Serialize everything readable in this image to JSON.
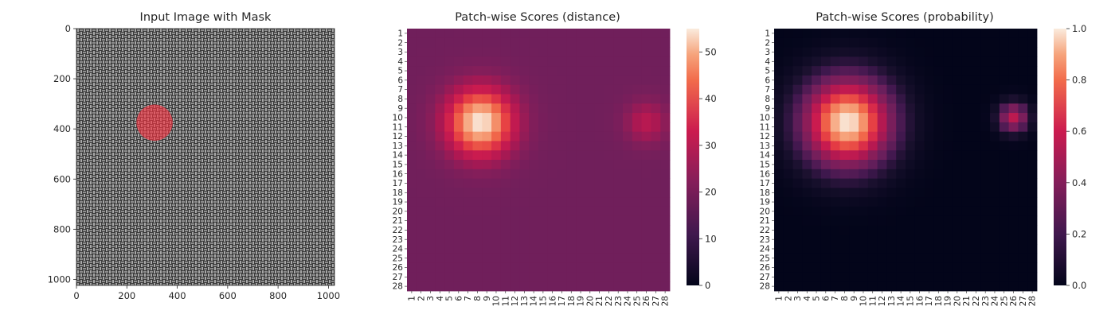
{
  "chart_data": [
    {
      "type": "image",
      "title": "Input Image with Mask",
      "xticks": [
        0,
        200,
        400,
        600,
        800,
        1000
      ],
      "yticks": [
        0,
        200,
        400,
        600,
        800,
        1000
      ],
      "xlim": [
        0,
        1024
      ],
      "ylim": [
        1024,
        0
      ],
      "mask": {
        "cx": 310,
        "cy": 375,
        "r": 72,
        "color": "#ff3040"
      }
    },
    {
      "type": "heatmap",
      "title": "Patch-wise Scores (distance)",
      "size": 28,
      "xticklabels": [
        "1",
        "2",
        "3",
        "4",
        "5",
        "6",
        "7",
        "8",
        "9",
        "10",
        "11",
        "12",
        "13",
        "14",
        "15",
        "16",
        "17",
        "18",
        "19",
        "20",
        "21",
        "22",
        "23",
        "24",
        "25",
        "26",
        "27",
        "28"
      ],
      "yticklabels": [
        "1",
        "2",
        "3",
        "4",
        "5",
        "6",
        "7",
        "8",
        "9",
        "10",
        "11",
        "12",
        "13",
        "14",
        "15",
        "16",
        "17",
        "18",
        "19",
        "20",
        "21",
        "22",
        "23",
        "24",
        "25",
        "26",
        "27",
        "28"
      ],
      "vmin": 0,
      "vmax": 55,
      "colorbar_ticks": [
        0,
        10,
        20,
        30,
        40,
        50
      ],
      "colormap": "rocket",
      "base_value": 18,
      "hotspots": [
        {
          "row": 10.5,
          "col": 8.3,
          "peak": 55,
          "sigma": 2.6
        },
        {
          "row": 10.5,
          "col": 26,
          "peak": 30,
          "sigma": 1.6
        }
      ]
    },
    {
      "type": "heatmap",
      "title": "Patch-wise Scores (probability)",
      "size": 28,
      "xticklabels": [
        "1",
        "2",
        "3",
        "4",
        "5",
        "6",
        "7",
        "8",
        "9",
        "10",
        "11",
        "12",
        "13",
        "14",
        "15",
        "16",
        "17",
        "18",
        "19",
        "20",
        "21",
        "22",
        "23",
        "24",
        "25",
        "26",
        "27",
        "28"
      ],
      "yticklabels": [
        "1",
        "2",
        "3",
        "4",
        "5",
        "6",
        "7",
        "8",
        "9",
        "10",
        "11",
        "12",
        "13",
        "14",
        "15",
        "16",
        "17",
        "18",
        "19",
        "20",
        "21",
        "22",
        "23",
        "24",
        "25",
        "26",
        "27",
        "28"
      ],
      "vmin": 0.0,
      "vmax": 1.0,
      "colorbar_ticks": [
        "0.0",
        "0.2",
        "0.4",
        "0.6",
        "0.8",
        "1.0"
      ],
      "colormap": "rocket",
      "base_value": 0.0,
      "hotspots": [
        {
          "row": 10.5,
          "col": 8.3,
          "peak": 1.0,
          "sigma": 3.3
        },
        {
          "row": 10.0,
          "col": 26,
          "peak": 0.55,
          "sigma": 1.1
        }
      ]
    }
  ]
}
